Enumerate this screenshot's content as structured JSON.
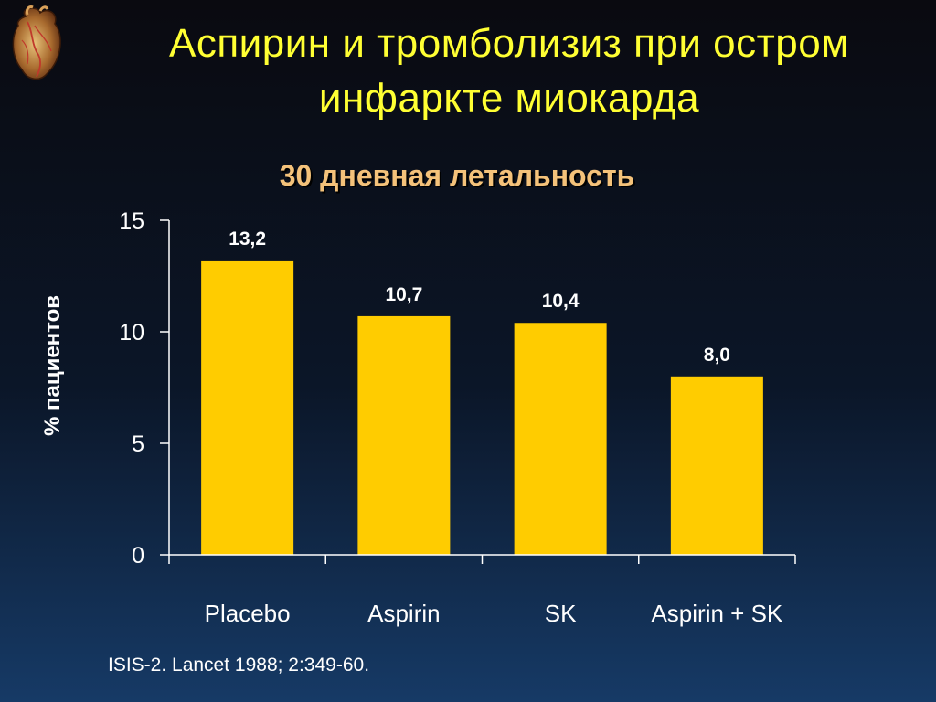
{
  "slide": {
    "title_line1": "Аспирин и тромболизиз при остром",
    "title_line2": "инфаркте миокарда",
    "logo_icon": "heart-icon",
    "citation": "ISIS-2. Lancet 1988; 2:349-60."
  },
  "chart_data": {
    "type": "bar",
    "title": "30 дневная летальность",
    "xlabel": "",
    "ylabel": "% пациентов",
    "categories": [
      "Placebo",
      "Aspirin",
      "SK",
      "Aspirin + SK"
    ],
    "values": [
      13.2,
      10.7,
      10.4,
      8.0
    ],
    "data_labels": [
      "13,2",
      "10,7",
      "10,4",
      "8,0"
    ],
    "ylim": [
      0,
      15
    ],
    "yticks": [
      0,
      5,
      10,
      15
    ],
    "ytick_labels": [
      "0",
      "5",
      "10",
      "15"
    ],
    "grid": false,
    "legend": "none",
    "colors": {
      "bar": "#ffcc00",
      "axis": "#ffffff",
      "title": "#f4c27a",
      "slide_title": "#ffff33",
      "text": "#ffffff"
    }
  }
}
